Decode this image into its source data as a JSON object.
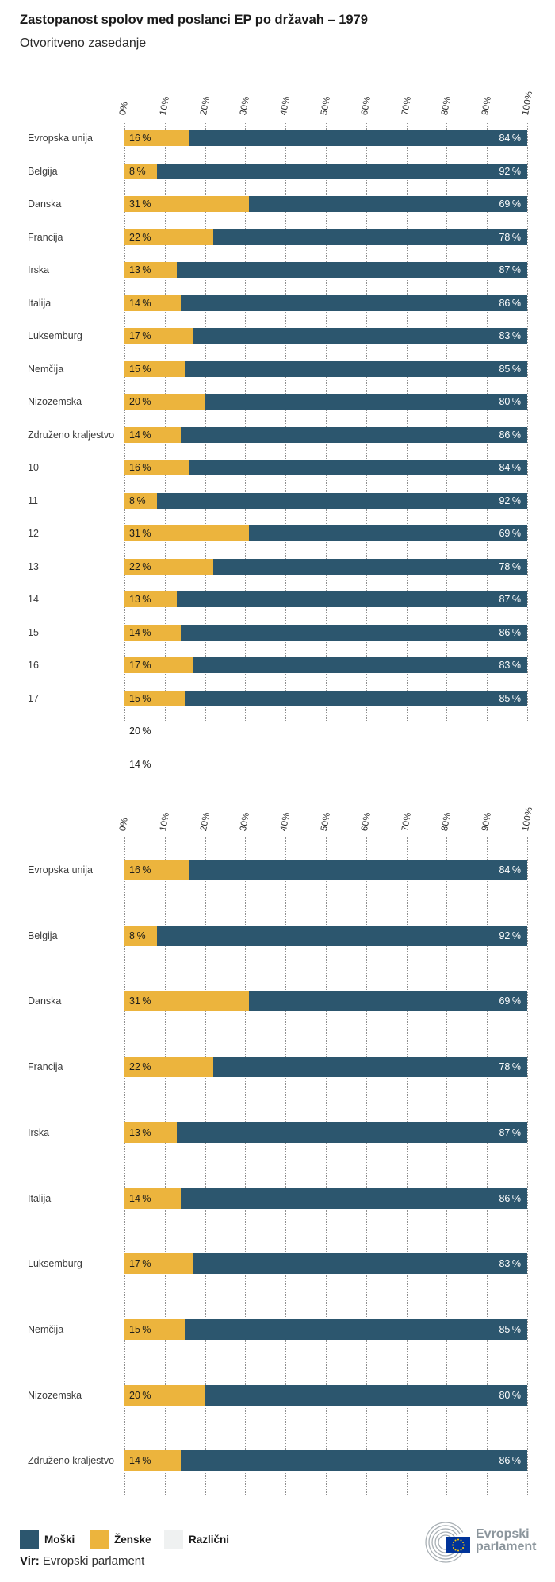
{
  "header": {
    "title": "Zastopanost spolov med poslanci EP po državah – 1979",
    "subtitle": "Otvoritveno zasedanje"
  },
  "colors": {
    "men_blue": "#2C566E",
    "women_yellow": "#ECB43D",
    "various_gray": "#EFF1F1",
    "grid_gray": "#8f8f8f",
    "flag_blue": "#003399",
    "star_yellow": "#FFCC00",
    "logo_gray": "#8B959C"
  },
  "x_axis": {
    "tick_labels": [
      "0%",
      "10%",
      "20%",
      "30%",
      "40%",
      "50%",
      "60%",
      "70%",
      "80%",
      "90%",
      "100%"
    ]
  },
  "chart_data": [
    {
      "type": "bar",
      "orientation": "horizontal",
      "stacked": true,
      "xlim": [
        0,
        100
      ],
      "grid": true,
      "categories": [
        "Evropska unija",
        "Belgija",
        "Danska",
        "Francija",
        "Irska",
        "Italija",
        "Luksemburg",
        "Nemčija",
        "Nizozemska",
        "Združeno kraljestvo",
        "10",
        "11",
        "12",
        "13",
        "14",
        "15",
        "16",
        "17"
      ],
      "series": [
        {
          "name": "Ženske",
          "values": [
            16,
            8,
            31,
            22,
            13,
            14,
            17,
            15,
            20,
            14,
            16,
            8,
            31,
            22,
            13,
            14,
            17,
            15
          ]
        },
        {
          "name": "Moški",
          "values": [
            84,
            92,
            69,
            78,
            87,
            86,
            83,
            85,
            80,
            86,
            84,
            92,
            69,
            78,
            87,
            86,
            83,
            85
          ]
        }
      ],
      "orphan_values": [
        20,
        14
      ],
      "value_suffix": " %"
    },
    {
      "type": "bar",
      "orientation": "horizontal",
      "stacked": true,
      "xlim": [
        0,
        100
      ],
      "grid": true,
      "categories": [
        "Evropska unija",
        "Belgija",
        "Danska",
        "Francija",
        "Irska",
        "Italija",
        "Luksemburg",
        "Nemčija",
        "Nizozemska",
        "Združeno kraljestvo"
      ],
      "series": [
        {
          "name": "Ženske",
          "values": [
            16,
            8,
            31,
            22,
            13,
            14,
            17,
            15,
            20,
            14
          ]
        },
        {
          "name": "Moški",
          "values": [
            84,
            92,
            69,
            78,
            87,
            86,
            83,
            85,
            80,
            86
          ]
        }
      ],
      "value_suffix": " %"
    }
  ],
  "legend": {
    "items": [
      {
        "label": "Moški",
        "color_key": "men_blue"
      },
      {
        "label": "Ženske",
        "color_key": "women_yellow"
      },
      {
        "label": "Različni",
        "color_key": "various_gray"
      }
    ]
  },
  "source": {
    "label": "Vir:",
    "text": "Evropski parlament"
  },
  "logo": {
    "line1": "Evropski",
    "line2": "parlament"
  }
}
